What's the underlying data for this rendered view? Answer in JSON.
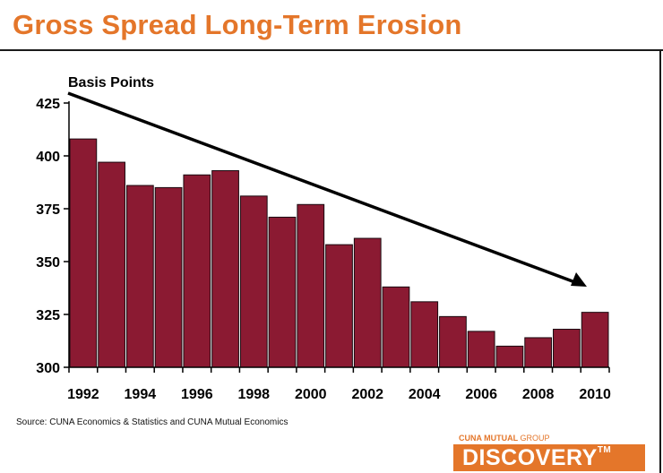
{
  "header": {
    "caption": "",
    "title": "Gross Spread Long-Term Erosion"
  },
  "footer": {
    "source": "Source: CUNA Economics & Statistics and CUNA Mutual Economics",
    "brand_top_bold": "CUNA MUTUAL",
    "brand_top_light": "GROUP",
    "brand_name": "DISCOVERY",
    "brand_tm": "TM"
  },
  "colors": {
    "bar": "#8b1a32",
    "title": "#e4762a",
    "arrow": "#000000"
  },
  "chart_data": {
    "type": "bar",
    "annotation": "Basis Points",
    "categories": [
      "1992",
      "1993",
      "1994",
      "1995",
      "1996",
      "1997",
      "1998",
      "1999",
      "2000",
      "2001",
      "2002",
      "2003",
      "2004",
      "2005",
      "2006",
      "2007",
      "2008",
      "2009",
      "2010"
    ],
    "x_tick_labels": [
      "1992",
      "1994",
      "1996",
      "1998",
      "2000",
      "2002",
      "2004",
      "2006",
      "2008",
      "2010"
    ],
    "values": [
      408,
      397,
      386,
      385,
      391,
      393,
      381,
      371,
      377,
      358,
      361,
      338,
      331,
      324,
      317,
      310,
      314,
      318,
      326
    ],
    "ylim": [
      300,
      425
    ],
    "yticks": [
      300,
      325,
      350,
      375,
      400,
      425
    ],
    "grid": false,
    "trend_arrow": "downward, from 1992 toward 2010"
  }
}
